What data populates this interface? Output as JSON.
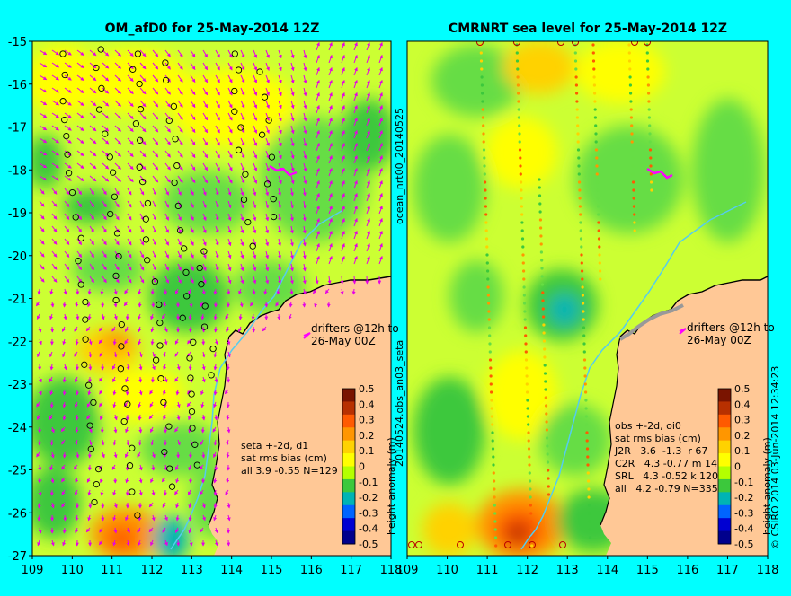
{
  "left_panel": {
    "title": "OM_afD0 for 25-May-2014 12Z",
    "lat_ticks": [
      "-15",
      "-16",
      "-17",
      "-18",
      "-19",
      "-20",
      "-21",
      "-22",
      "-23",
      "-24",
      "-25",
      "-26",
      "-27"
    ],
    "lon_ticks": [
      "109",
      "110",
      "111",
      "112",
      "113",
      "114",
      "115",
      "116",
      "117",
      "118"
    ],
    "drifter_lines": [
      "drifters @12h to",
      "26-May 00Z"
    ],
    "stats_lines": [
      "seta +-2d, d1",
      "sat rms bias (cm)",
      "all 3.9 -0.55 N=129"
    ],
    "colorbar_ticks": [
      "0.5",
      "0.4",
      "0.3",
      "0.2",
      "0.1",
      "0",
      "-0.1",
      "-0.2",
      "-0.3",
      "-0.4",
      "-0.5"
    ],
    "colorbar_label": "height anomaly (m)"
  },
  "right_panel": {
    "title": "CMRNRT sea level  for 25-May-2014 12Z",
    "lon_ticks": [
      "109",
      "110",
      "111",
      "112",
      "113",
      "114",
      "115",
      "116",
      "117",
      "118"
    ],
    "drifter_lines": [
      "drifters @12h to",
      "26-May 00Z"
    ],
    "stats_lines": [
      "obs +-2d, oi0",
      "sat rms bias (cm)",
      "J2R   3.6  -1.3  r 67",
      "C2R   4.3 -0.77 m 14",
      "SRL   4.3 -0.52 k 120",
      "all   4.2 -0.79 N=335"
    ],
    "colorbar_ticks": [
      "0.5",
      "0.4",
      "0.3",
      "0.2",
      "0.1",
      "0",
      "-0.1",
      "-0.2",
      "-0.3",
      "-0.4",
      "-0.5"
    ],
    "colorbar_label": "height anomaly (m)"
  },
  "side_labels": {
    "middle_upper": "ocean_nrt00_20140525",
    "middle_lower": "20140524.obs_an03_seta",
    "right_edge": "© CSIRO 2014   03-Jun-2014 12:34:23"
  },
  "colors": {
    "background": "#00ffff",
    "land": "#ffc896",
    "vector": "#e600e6",
    "drifter": "#ff00ff",
    "colorbar": [
      "#7a1400",
      "#b83000",
      "#ff5a00",
      "#ff9600",
      "#ffd200",
      "#ffff00",
      "#b4ff00",
      "#3cc83c",
      "#00b4b4",
      "#0064ff",
      "#0000d2",
      "#00008c"
    ]
  }
}
